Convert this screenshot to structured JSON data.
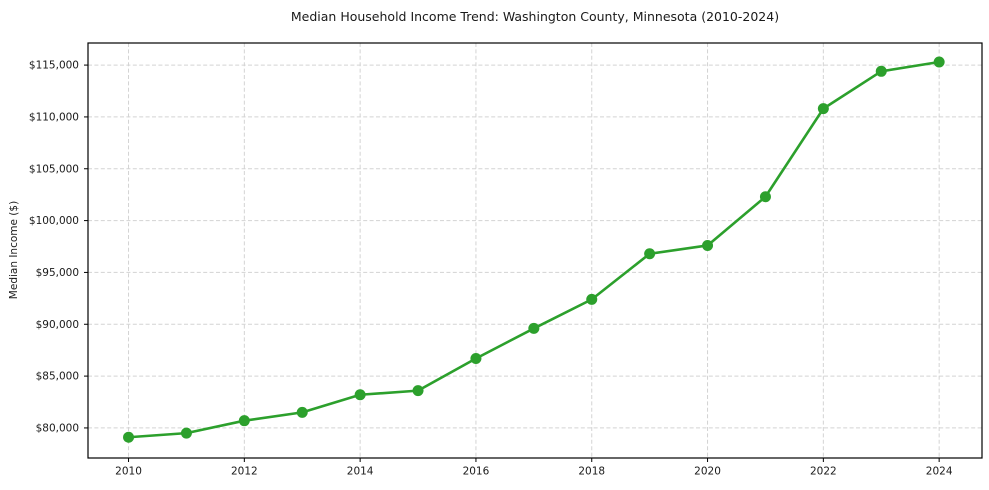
{
  "chart_data": {
    "type": "line",
    "title": "Median Household Income Trend: Washington County, Minnesota (2010-2024)",
    "xlabel": "",
    "ylabel": "Median Income ($)",
    "x": [
      2010,
      2011,
      2012,
      2013,
      2014,
      2015,
      2016,
      2017,
      2018,
      2019,
      2020,
      2021,
      2022,
      2023,
      2024
    ],
    "values": [
      79100,
      79500,
      80700,
      81500,
      83200,
      83600,
      86700,
      89600,
      92400,
      96800,
      97600,
      102300,
      110800,
      114400,
      115300
    ],
    "series_name": "Median Household Income",
    "xlim": [
      2009.3,
      2024.74
    ],
    "ylim": [
      77100,
      117130
    ],
    "xticks": [
      2010,
      2012,
      2014,
      2016,
      2018,
      2020,
      2022,
      2024
    ],
    "xtick_labels": [
      "2010",
      "2012",
      "2014",
      "2016",
      "2018",
      "2020",
      "2022",
      "2024"
    ],
    "yticks": [
      80000,
      85000,
      90000,
      95000,
      100000,
      105000,
      110000,
      115000
    ],
    "ytick_labels": [
      "$80,000",
      "$85,000",
      "$90,000",
      "$95,000",
      "$100,000",
      "$105,000",
      "$110,000",
      "$115,000"
    ],
    "grid": true,
    "grid_style": "dashed",
    "legend": "none",
    "marker": "circle",
    "line_color": "#2ca02c",
    "marker_color": "#2ca02c",
    "grid_color": "#d3d3d3",
    "axis_color": "#000000",
    "text_color": "#1a1a1a",
    "background": "#ffffff"
  }
}
